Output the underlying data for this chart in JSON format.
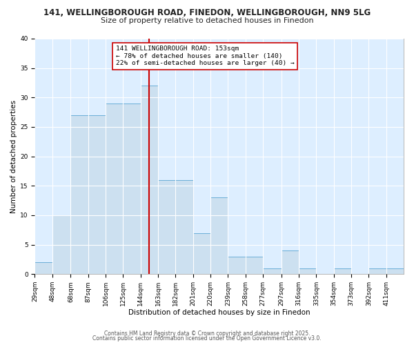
{
  "title_line1": "141, WELLINGBOROUGH ROAD, FINEDON, WELLINGBOROUGH, NN9 5LG",
  "title_line2": "Size of property relative to detached houses in Finedon",
  "xlabel": "Distribution of detached houses by size in Finedon",
  "ylabel": "Number of detached properties",
  "bin_labels": [
    "29sqm",
    "48sqm",
    "68sqm",
    "87sqm",
    "106sqm",
    "125sqm",
    "144sqm",
    "163sqm",
    "182sqm",
    "201sqm",
    "220sqm",
    "239sqm",
    "258sqm",
    "277sqm",
    "297sqm",
    "316sqm",
    "335sqm",
    "354sqm",
    "373sqm",
    "392sqm",
    "411sqm"
  ],
  "bin_edges": [
    29,
    48,
    68,
    87,
    106,
    125,
    144,
    163,
    182,
    201,
    220,
    239,
    258,
    277,
    297,
    316,
    335,
    354,
    373,
    392,
    411,
    430
  ],
  "counts": [
    2,
    10,
    27,
    27,
    29,
    29,
    32,
    16,
    16,
    7,
    13,
    3,
    3,
    1,
    4,
    1,
    0,
    1,
    0,
    1,
    1
  ],
  "bar_color": "#cce0f0",
  "bar_edge_color": "#6aaed6",
  "vline_x": 153,
  "vline_color": "#cc0000",
  "annotation_text": "141 WELLINGBOROUGH ROAD: 153sqm\n← 78% of detached houses are smaller (140)\n22% of semi-detached houses are larger (40) →",
  "annotation_box_color": "#ffffff",
  "annotation_box_edge": "#cc0000",
  "ylim": [
    0,
    40
  ],
  "yticks": [
    0,
    5,
    10,
    15,
    20,
    25,
    30,
    35,
    40
  ],
  "bg_color": "#ffffff",
  "plot_bg_color": "#ddeeff",
  "grid_color": "#ffffff",
  "footer_line1": "Contains HM Land Registry data © Crown copyright and database right 2025.",
  "footer_line2": "Contains public sector information licensed under the Open Government Licence v3.0.",
  "title_fontsize": 8.5,
  "subtitle_fontsize": 8,
  "axis_label_fontsize": 7.5,
  "tick_fontsize": 6.5,
  "annotation_fontsize": 6.8,
  "footer_fontsize": 5.5
}
